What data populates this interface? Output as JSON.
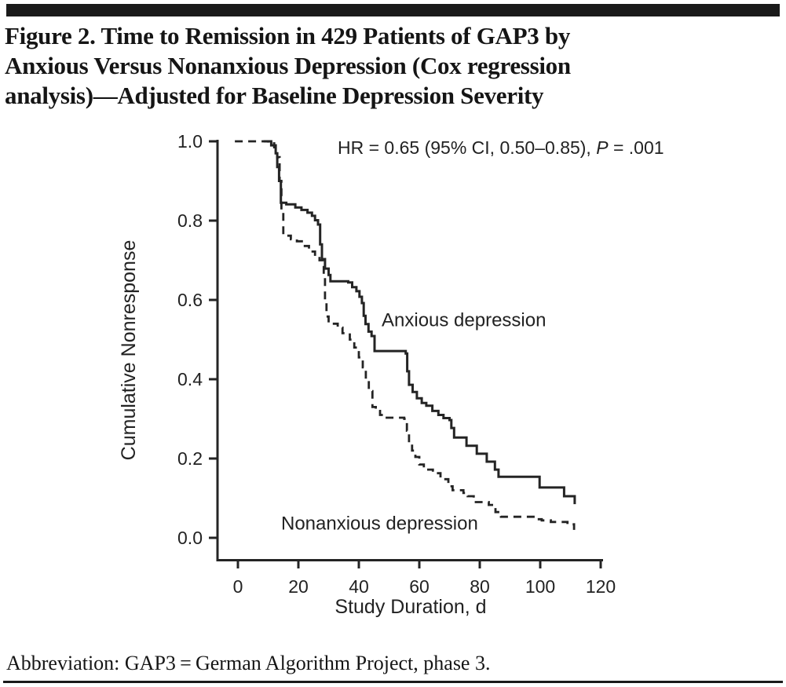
{
  "header": {
    "title_line1": "Figure 2. Time to Remission in 429 Patients of GAP3 by",
    "title_line2": "Anxious Versus Nonanxious Depression (Cox regression",
    "title_line3": "analysis)—Adjusted for Baseline Depression Severity"
  },
  "annotation": {
    "before_p": "HR = 0.65 (95% CI, 0.50–0.85), ",
    "p_label": "P",
    "after_p": " = .001"
  },
  "chart_data": {
    "type": "line",
    "subtype": "step-survival",
    "title": "",
    "xlabel": "Study Duration, d",
    "ylabel": "Cumulative Nonresponse",
    "xlim": [
      0,
      120
    ],
    "ylim": [
      0.0,
      1.0
    ],
    "grid": false,
    "legend_position": "inline-curve-labels",
    "x_tick_labels": [
      "0",
      "20",
      "40",
      "60",
      "80",
      "100",
      "120"
    ],
    "y_tick_labels": [
      "1.0",
      "0.8",
      "0.6",
      "0.4",
      "0.2",
      "0.0"
    ],
    "annotation_text": "HR = 0.65 (95% CI, 0.50–0.85), P = .001",
    "series": [
      {
        "name": "Anxious depression",
        "style": "solid",
        "points": [
          [
            8.5,
            1.0
          ],
          [
            11,
            0.99
          ],
          [
            12.5,
            0.97
          ],
          [
            13,
            0.935
          ],
          [
            13.6,
            0.9
          ],
          [
            14.2,
            0.845
          ],
          [
            16,
            0.841
          ],
          [
            19,
            0.833
          ],
          [
            21,
            0.827
          ],
          [
            23,
            0.82
          ],
          [
            24.5,
            0.812
          ],
          [
            25.5,
            0.801
          ],
          [
            26.5,
            0.79
          ],
          [
            27.2,
            0.74
          ],
          [
            27.8,
            0.703
          ],
          [
            28.8,
            0.679
          ],
          [
            30,
            0.663
          ],
          [
            30.6,
            0.647
          ],
          [
            36.5,
            0.644
          ],
          [
            37.8,
            0.632
          ],
          [
            39.2,
            0.622
          ],
          [
            40.2,
            0.608
          ],
          [
            41,
            0.592
          ],
          [
            41.6,
            0.56
          ],
          [
            42.2,
            0.539
          ],
          [
            43.2,
            0.52
          ],
          [
            44.2,
            0.509
          ],
          [
            45.2,
            0.471
          ],
          [
            55.5,
            0.465
          ],
          [
            56,
            0.42
          ],
          [
            56.6,
            0.386
          ],
          [
            57.8,
            0.368
          ],
          [
            59.2,
            0.352
          ],
          [
            60.8,
            0.34
          ],
          [
            62.3,
            0.333
          ],
          [
            64.3,
            0.32
          ],
          [
            66.3,
            0.31
          ],
          [
            68,
            0.302
          ],
          [
            70,
            0.297
          ],
          [
            70.6,
            0.277
          ],
          [
            71.5,
            0.253
          ],
          [
            75.6,
            0.232
          ],
          [
            79,
            0.212
          ],
          [
            82.3,
            0.192
          ],
          [
            85,
            0.172
          ],
          [
            86.2,
            0.154
          ],
          [
            99.8,
            0.127
          ],
          [
            107.9,
            0.105
          ],
          [
            111.4,
            0.085
          ]
        ]
      },
      {
        "name": "Nonanxious depression",
        "style": "dashed",
        "points": [
          [
            -1,
            1.0
          ],
          [
            10,
            0.995
          ],
          [
            12,
            0.985
          ],
          [
            13,
            0.96
          ],
          [
            13.8,
            0.9
          ],
          [
            14.4,
            0.82
          ],
          [
            15,
            0.762
          ],
          [
            17.5,
            0.753
          ],
          [
            19.5,
            0.748
          ],
          [
            21.5,
            0.736
          ],
          [
            23.5,
            0.722
          ],
          [
            25.5,
            0.71
          ],
          [
            27,
            0.7
          ],
          [
            28.4,
            0.655
          ],
          [
            28.8,
            0.6
          ],
          [
            29.3,
            0.558
          ],
          [
            30,
            0.54
          ],
          [
            33,
            0.53
          ],
          [
            34.6,
            0.516
          ],
          [
            37,
            0.5
          ],
          [
            38.5,
            0.48
          ],
          [
            40,
            0.455
          ],
          [
            41.3,
            0.43
          ],
          [
            42.3,
            0.4
          ],
          [
            43.3,
            0.37
          ],
          [
            44.5,
            0.33
          ],
          [
            45.6,
            0.32
          ],
          [
            47,
            0.31
          ],
          [
            48.2,
            0.303
          ],
          [
            55,
            0.3
          ],
          [
            55.9,
            0.27
          ],
          [
            56.6,
            0.244
          ],
          [
            57.6,
            0.22
          ],
          [
            58.7,
            0.204
          ],
          [
            60,
            0.185
          ],
          [
            61.5,
            0.172
          ],
          [
            64.5,
            0.163
          ],
          [
            67,
            0.148
          ],
          [
            69.6,
            0.13
          ],
          [
            71,
            0.12
          ],
          [
            74.6,
            0.113
          ],
          [
            76,
            0.105
          ],
          [
            78,
            0.09
          ],
          [
            83,
            0.083
          ],
          [
            85.2,
            0.065
          ],
          [
            87,
            0.053
          ],
          [
            99,
            0.047
          ],
          [
            100.5,
            0.044
          ],
          [
            103.5,
            0.04
          ],
          [
            109,
            0.034
          ],
          [
            111.2,
            0.02
          ]
        ]
      }
    ]
  },
  "footer": {
    "text": "Abbreviation: GAP3 = German Algorithm Project, phase 3."
  },
  "colors": {
    "ink": "#242424",
    "bar": "#1a1a1a"
  }
}
